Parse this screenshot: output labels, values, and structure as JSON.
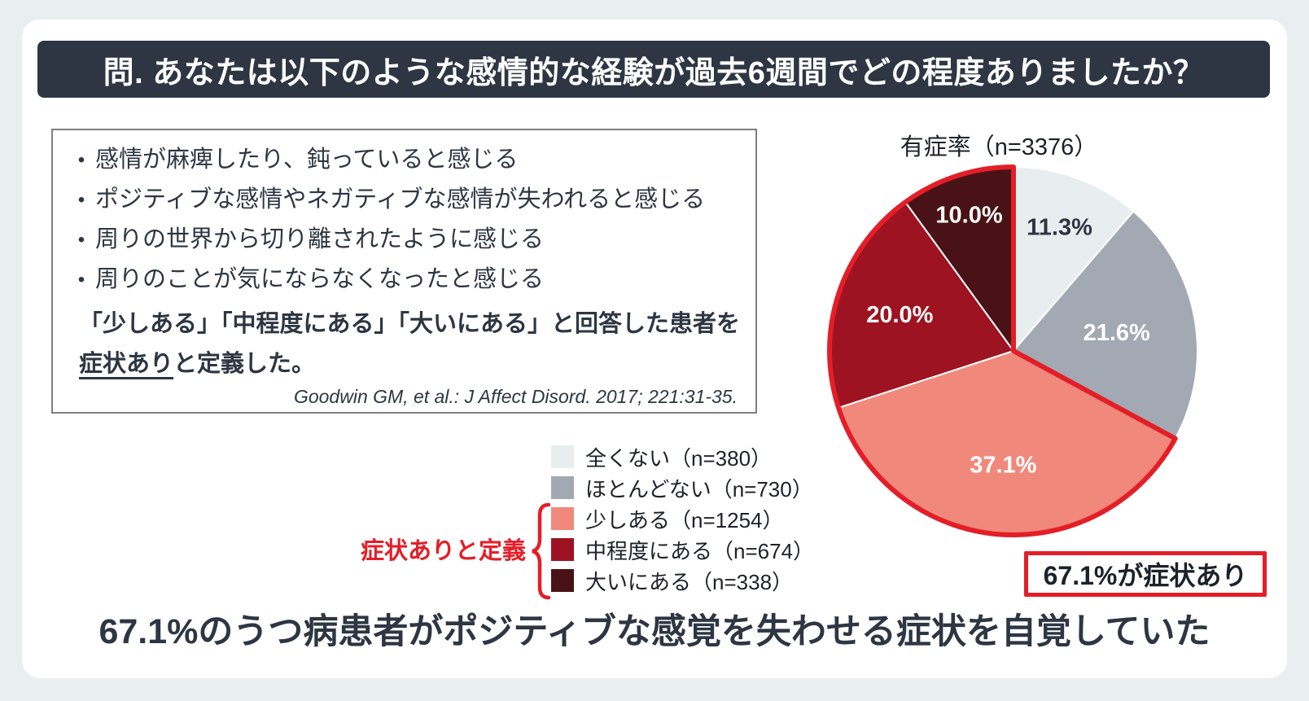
{
  "palette": {
    "page_bg": "#e9eef1",
    "card_bg": "#ffffff",
    "dark_navy": "#2d3642",
    "accent_red": "#e41e28",
    "box_border_grey": "#7f7f7f"
  },
  "header": {
    "question": "問. あなたは以下のような感情的な経験が過去6週間でどの程度ありましたか？"
  },
  "criteria": {
    "bullet_char": "•",
    "bullets": [
      "感情が麻痺したり、鈍っていると感じる",
      "ポジティブな感情やネガティブな感情が失われると感じる",
      "周りの世界から切り離されたように感じる",
      "周りのことが気にならなくなったと感じる"
    ],
    "definition": {
      "line1": "「少しある」「中程度にある」「大いにある」と回答した患者を",
      "underlined": "症状あり",
      "rest": "と定義した。"
    },
    "reference": "Goodwin GM, et al.: J Affect Disord. 2017; 221:31-35."
  },
  "chart_data": {
    "type": "pie",
    "title": "有症率（n=3376）",
    "total_n": 3376,
    "start_position": "12-oclock-clockwise",
    "categories": [
      "全くない",
      "ほとんどない",
      "少しある",
      "中程度にある",
      "大いにある"
    ],
    "values": [
      11.3,
      21.6,
      37.1,
      20.0,
      10.0
    ],
    "counts": [
      380,
      730,
      1254,
      674,
      338
    ],
    "slice_labels": [
      "11.3%",
      "21.6%",
      "37.1%",
      "20.0%",
      "10.0%"
    ],
    "colors": [
      "#e8edf0",
      "#a3a9b3",
      "#f0897b",
      "#9e1321",
      "#491216"
    ],
    "outline_color": "#e41e28",
    "outlined_slice_indexes": [
      2,
      3,
      4
    ],
    "outlined_group_share": "67.1%",
    "legend_position": "lower-left-of-pie"
  },
  "legend": {
    "items": [
      {
        "label": "全くない（n=380）",
        "color": "#e8edf0",
        "in_symptom_group": false
      },
      {
        "label": "ほとんどない（n=730）",
        "color": "#a3a9b3",
        "in_symptom_group": false
      },
      {
        "label": "少しある（n=1254）",
        "color": "#f0897b",
        "in_symptom_group": true
      },
      {
        "label": "中程度にある（n=674）",
        "color": "#9e1321",
        "in_symptom_group": true
      },
      {
        "label": "大いにある（n=338）",
        "color": "#491216",
        "in_symptom_group": true
      }
    ],
    "group_label": "症状ありと定義"
  },
  "callout": {
    "text": "67.1%が症状あり"
  },
  "conclusion": {
    "text": "67.1%のうつ病患者がポジティブな感覚を失わせる症状を自覚していた"
  }
}
